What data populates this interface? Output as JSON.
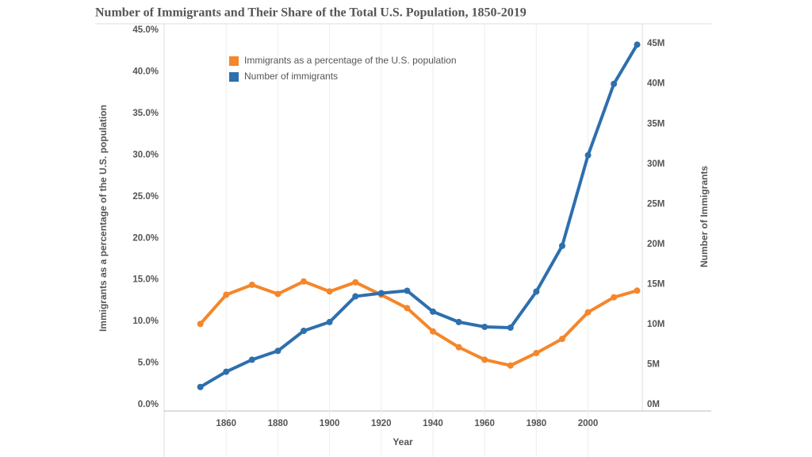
{
  "chart_data": {
    "type": "line",
    "title": "Number of Immigrants and Their Share of the Total U.S. Population, 1850-2019",
    "x_label": "Year",
    "y_label": "Immigrants as a percentage of the U.S. population",
    "y2_label": "Number of Immigrants",
    "x": [
      1850,
      1860,
      1870,
      1880,
      1890,
      1900,
      1910,
      1920,
      1930,
      1940,
      1950,
      1960,
      1970,
      1980,
      1990,
      2000,
      2010,
      2019
    ],
    "series": [
      {
        "name": "Immigrants as a percentage of the U.S. population",
        "color": "#f5862a",
        "values": [
          9.7,
          13.2,
          14.4,
          13.3,
          14.8,
          13.6,
          14.7,
          13.2,
          11.6,
          8.8,
          6.9,
          5.4,
          4.7,
          6.2,
          7.9,
          11.1,
          12.9,
          13.7
        ]
      },
      {
        "name": "Number of immigrants",
        "color": "#2e6fad",
        "axis": "y2",
        "values": [
          2200000,
          4100000,
          5600000,
          6700000,
          9200000,
          10300000,
          13500000,
          13900000,
          14200000,
          11600000,
          10300000,
          9700000,
          9600000,
          14100000,
          19800000,
          31100000,
          40000000,
          44900000
        ]
      }
    ],
    "xlim": [
      1836,
      2021
    ],
    "xticks": [
      1860,
      1880,
      1900,
      1920,
      1940,
      1960,
      1980,
      2000
    ],
    "ylim": [
      0,
      45
    ],
    "yticks": [
      {
        "value": 0,
        "label": "0.0%"
      },
      {
        "value": 5,
        "label": "5.0%"
      },
      {
        "value": 10,
        "label": "10.0%"
      },
      {
        "value": 15,
        "label": "15.0%"
      },
      {
        "value": 20,
        "label": "20.0%"
      },
      {
        "value": 25,
        "label": "25.0%"
      },
      {
        "value": 30,
        "label": "30.0%"
      },
      {
        "value": 35,
        "label": "35.0%"
      },
      {
        "value": 40,
        "label": "40.0%"
      },
      {
        "value": 45,
        "label": "45.0%"
      }
    ],
    "y2lim": [
      0,
      46700000
    ],
    "y2ticks": [
      {
        "value": 0,
        "label": "0M"
      },
      {
        "value": 5000000,
        "label": "5M"
      },
      {
        "value": 10000000,
        "label": "10M"
      },
      {
        "value": 15000000,
        "label": "15M"
      },
      {
        "value": 20000000,
        "label": "20M"
      },
      {
        "value": 25000000,
        "label": "25M"
      },
      {
        "value": 30000000,
        "label": "30M"
      },
      {
        "value": 35000000,
        "label": "35M"
      },
      {
        "value": 40000000,
        "label": "40M"
      },
      {
        "value": 45000000,
        "label": "45M"
      }
    ],
    "grid": "x",
    "legend": "top-left"
  }
}
